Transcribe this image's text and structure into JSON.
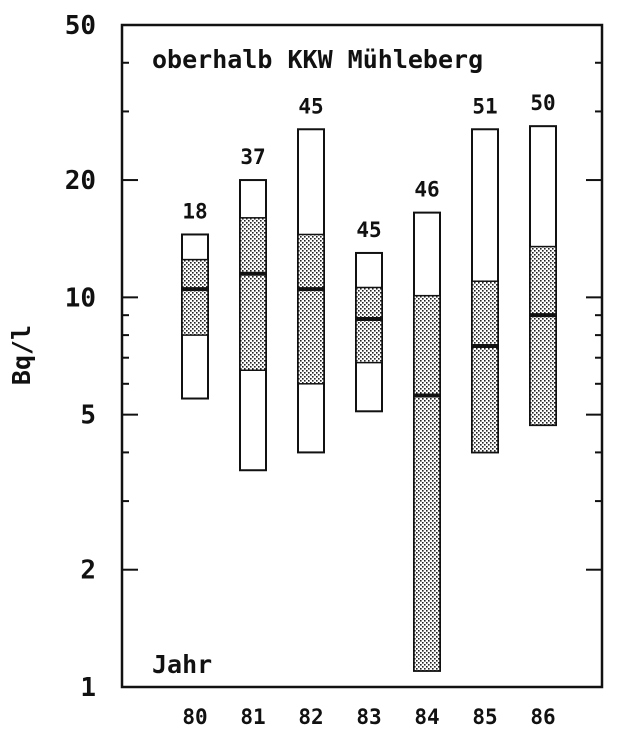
{
  "chart_data": {
    "type": "boxplot",
    "title": "oberhalb KKW Mühleberg",
    "ylabel": "Bq/l",
    "xlabel": "Jahr",
    "y_scale": "log",
    "ylim": [
      1,
      50
    ],
    "yticks": [
      1,
      2,
      5,
      10,
      20,
      50
    ],
    "ytick_labels": [
      "1",
      "2",
      "5",
      "10",
      "20",
      "50"
    ],
    "categories": [
      "80",
      "81",
      "82",
      "83",
      "84",
      "85",
      "86"
    ],
    "series": [
      {
        "year": "80",
        "count": "18",
        "min": 5.5,
        "q1": 8.0,
        "median": 10.5,
        "q3": 12.5,
        "max": 14.5
      },
      {
        "year": "81",
        "count": "37",
        "min": 3.6,
        "q1": 6.5,
        "median": 11.5,
        "q3": 16.0,
        "max": 20.0
      },
      {
        "year": "82",
        "count": "45",
        "min": 4.0,
        "q1": 6.0,
        "median": 10.5,
        "q3": 14.5,
        "max": 27.0
      },
      {
        "year": "83",
        "count": "45",
        "min": 5.1,
        "q1": 6.8,
        "median": 8.8,
        "q3": 10.6,
        "max": 13.0
      },
      {
        "year": "84",
        "count": "46",
        "min": 1.1,
        "q1": 1.1,
        "median": 5.6,
        "q3": 10.1,
        "max": 16.5
      },
      {
        "year": "85",
        "count": "51",
        "min": 4.0,
        "q1": 4.0,
        "median": 7.5,
        "q3": 11.0,
        "max": 27.0
      },
      {
        "year": "86",
        "count": "50",
        "min": 4.7,
        "q1": 4.7,
        "median": 9.0,
        "q3": 13.5,
        "max": 27.5
      }
    ]
  }
}
